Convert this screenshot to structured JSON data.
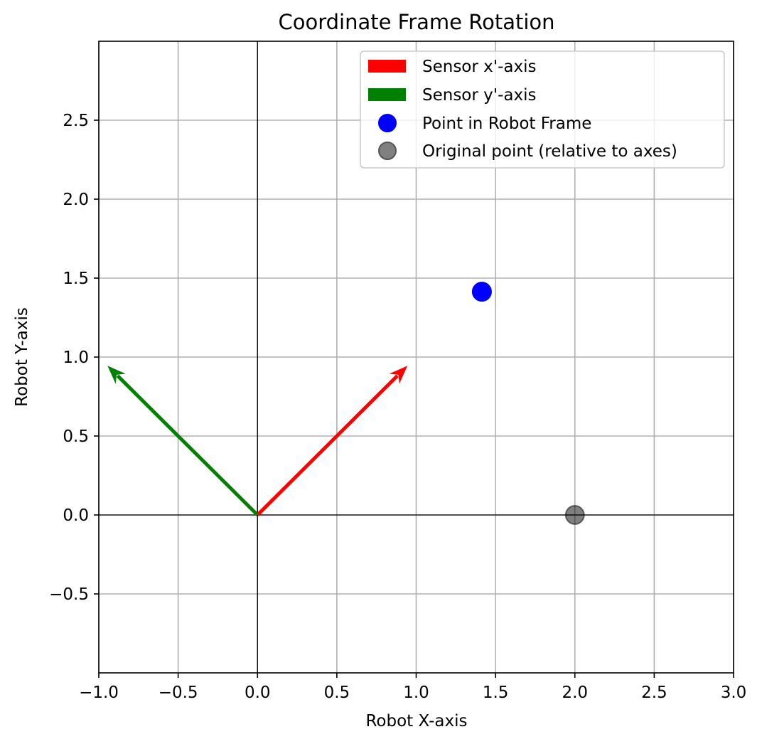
{
  "chart_data": {
    "type": "vector_plot",
    "title": "Coordinate Frame Rotation",
    "xlabel": "Robot X-axis",
    "ylabel": "Robot Y-axis",
    "xlim": [
      -1.0,
      3.0
    ],
    "ylim": [
      -1.0,
      3.0
    ],
    "grid": true,
    "reference_lines": {
      "x": 0,
      "y": 0
    },
    "xticks": [
      {
        "value": -1.0,
        "label": "−1.0"
      },
      {
        "value": -0.5,
        "label": "−0.5"
      },
      {
        "value": 0.0,
        "label": "0.0"
      },
      {
        "value": 0.5,
        "label": "0.5"
      },
      {
        "value": 1.0,
        "label": "1.0"
      },
      {
        "value": 1.5,
        "label": "1.5"
      },
      {
        "value": 2.0,
        "label": "2.0"
      },
      {
        "value": 2.5,
        "label": "2.5"
      },
      {
        "value": 3.0,
        "label": "3.0"
      }
    ],
    "yticks": [
      {
        "value": -0.5,
        "label": "−0.5"
      },
      {
        "value": 0.0,
        "label": "0.0"
      },
      {
        "value": 0.5,
        "label": "0.5"
      },
      {
        "value": 1.0,
        "label": "1.0"
      },
      {
        "value": 1.5,
        "label": "1.5"
      },
      {
        "value": 2.0,
        "label": "2.0"
      },
      {
        "value": 2.5,
        "label": "2.5"
      }
    ],
    "vectors": [
      {
        "name": "Sensor x'-axis",
        "origin": [
          0,
          0
        ],
        "dx": 0.945,
        "dy": 0.945,
        "color": "#ff0000"
      },
      {
        "name": "Sensor y'-axis",
        "origin": [
          0,
          0
        ],
        "dx": -0.945,
        "dy": 0.945,
        "color": "#008000"
      }
    ],
    "points": [
      {
        "name": "Point in Robot Frame",
        "x": 1.414,
        "y": 1.414,
        "color": "#0000ff",
        "alpha": 1.0
      },
      {
        "name": "Original point (relative to axes)",
        "x": 2.0,
        "y": 0.0,
        "color": "#000000",
        "alpha": 0.5
      }
    ],
    "legend": {
      "placement": "upper right",
      "entries": [
        {
          "label": "Sensor x'-axis",
          "kind": "patch",
          "color": "#ff0000"
        },
        {
          "label": "Sensor y'-axis",
          "kind": "patch",
          "color": "#008000"
        },
        {
          "label": "Point in Robot Frame",
          "kind": "marker",
          "color": "#0000ff"
        },
        {
          "label": "Original point (relative to axes)",
          "kind": "marker",
          "color": "#808080"
        }
      ]
    }
  }
}
